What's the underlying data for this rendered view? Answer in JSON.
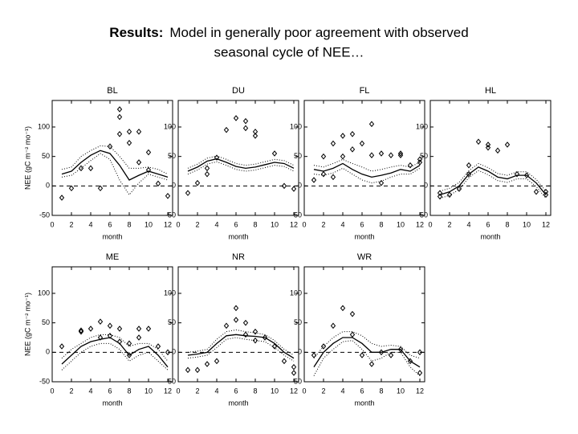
{
  "slide": {
    "title_bold": "Results:",
    "title_lines": [
      "Model in generally poor agreement with observed",
      "seasonal cycle of NEE…"
    ]
  },
  "chart_data": [
    {
      "type": "line",
      "title": "BL",
      "x_label": "month",
      "y_label": "NEE (gC m⁻² mo⁻¹)",
      "xlim": [
        0,
        12.5
      ],
      "ylim": [
        -50,
        145
      ],
      "xticks": [
        0,
        2,
        4,
        6,
        8,
        10,
        12
      ],
      "yticks": [
        -50,
        0,
        50,
        100
      ],
      "reference_line": 0,
      "x": [
        1,
        2,
        3,
        4,
        5,
        6,
        7,
        8,
        9,
        10,
        11,
        12
      ],
      "series": [
        {
          "style": "solid",
          "color": "#000000",
          "values": [
            20,
            25,
            40,
            52,
            60,
            55,
            35,
            10,
            18,
            25,
            20,
            15
          ]
        },
        {
          "style": "dotted",
          "color": "#000000",
          "values": [
            28,
            32,
            50,
            60,
            68,
            67,
            50,
            30,
            30,
            32,
            28,
            20
          ]
        },
        {
          "style": "dotted",
          "color": "#000000",
          "values": [
            15,
            18,
            30,
            43,
            55,
            45,
            10,
            -15,
            5,
            20,
            15,
            10
          ]
        }
      ],
      "points": {
        "x": [
          1,
          2,
          3,
          4,
          5,
          6,
          7,
          7,
          7,
          8,
          8,
          9,
          9,
          10,
          10,
          11,
          12
        ],
        "y": [
          -20,
          -4,
          30,
          30,
          -4,
          67,
          130,
          117,
          88,
          92,
          73,
          92,
          40,
          57,
          27,
          4,
          -17
        ]
      }
    },
    {
      "type": "line",
      "title": "DU",
      "x_label": "month",
      "xlim": [
        0,
        12.5
      ],
      "ylim": [
        -50,
        145
      ],
      "xticks": [
        0,
        2,
        4,
        6,
        8,
        10,
        12
      ],
      "yticks": [
        -50,
        0,
        50,
        100
      ],
      "reference_line": 0,
      "x": [
        1,
        2,
        3,
        4,
        5,
        6,
        7,
        8,
        9,
        10,
        11,
        12
      ],
      "series": [
        {
          "style": "solid",
          "color": "#000000",
          "values": [
            25,
            32,
            42,
            46,
            40,
            33,
            30,
            32,
            36,
            40,
            38,
            30
          ]
        },
        {
          "style": "dotted",
          "color": "#000000",
          "values": [
            30,
            37,
            47,
            51,
            45,
            38,
            35,
            37,
            41,
            45,
            43,
            35
          ]
        },
        {
          "style": "dotted",
          "color": "#000000",
          "values": [
            20,
            27,
            37,
            41,
            35,
            28,
            25,
            27,
            31,
            35,
            33,
            25
          ]
        }
      ],
      "points": {
        "x": [
          1,
          2,
          3,
          3,
          4,
          5,
          6,
          7,
          7,
          8,
          8,
          10,
          11,
          12
        ],
        "y": [
          -12,
          5,
          20,
          30,
          48,
          95,
          115,
          110,
          98,
          92,
          85,
          55,
          0,
          -5
        ]
      }
    },
    {
      "type": "line",
      "title": "FL",
      "x_label": "month",
      "xlim": [
        0,
        12.5
      ],
      "ylim": [
        -50,
        145
      ],
      "xticks": [
        0,
        2,
        4,
        6,
        8,
        10,
        12
      ],
      "yticks": [
        -50,
        0,
        50,
        100
      ],
      "reference_line": 0,
      "x": [
        1,
        2,
        3,
        4,
        5,
        6,
        7,
        8,
        9,
        10,
        11,
        12
      ],
      "series": [
        {
          "style": "solid",
          "color": "#000000",
          "values": [
            28,
            25,
            30,
            38,
            28,
            20,
            15,
            18,
            22,
            28,
            25,
            35
          ]
        },
        {
          "style": "dotted",
          "color": "#000000",
          "values": [
            35,
            32,
            38,
            45,
            38,
            32,
            25,
            28,
            32,
            35,
            32,
            40
          ]
        },
        {
          "style": "dotted",
          "color": "#000000",
          "values": [
            20,
            18,
            22,
            30,
            20,
            10,
            5,
            8,
            15,
            20,
            20,
            30
          ]
        }
      ],
      "points": {
        "x": [
          1,
          2,
          2,
          3,
          3,
          4,
          4,
          5,
          5,
          6,
          7,
          7,
          8,
          8,
          9,
          10,
          10,
          11,
          12,
          12
        ],
        "y": [
          10,
          50,
          20,
          72,
          15,
          85,
          50,
          88,
          62,
          72,
          105,
          52,
          55,
          5,
          52,
          55,
          52,
          35,
          45,
          40
        ]
      }
    },
    {
      "type": "line",
      "title": "HL",
      "x_label": "month",
      "xlim": [
        0,
        12.5
      ],
      "ylim": [
        -50,
        145
      ],
      "xticks": [
        0,
        2,
        4,
        6,
        8,
        10,
        12
      ],
      "yticks": [
        -50,
        0,
        50,
        100
      ],
      "reference_line": 0,
      "x": [
        1,
        2,
        3,
        4,
        5,
        6,
        7,
        8,
        9,
        10,
        11,
        12
      ],
      "series": [
        {
          "style": "solid",
          "color": "#000000",
          "values": [
            -15,
            -10,
            0,
            20,
            32,
            25,
            15,
            12,
            18,
            18,
            5,
            -15
          ]
        },
        {
          "style": "dotted",
          "color": "#000000",
          "values": [
            -9,
            -4,
            6,
            26,
            38,
            31,
            21,
            18,
            24,
            24,
            11,
            -9
          ]
        },
        {
          "style": "dotted",
          "color": "#000000",
          "values": [
            -21,
            -16,
            -6,
            14,
            26,
            19,
            9,
            6,
            12,
            12,
            -1,
            -21
          ]
        }
      ],
      "points": {
        "x": [
          1,
          1,
          2,
          3,
          4,
          4,
          5,
          6,
          6,
          7,
          8,
          9,
          10,
          11,
          12,
          12
        ],
        "y": [
          -12,
          -18,
          -15,
          -5,
          20,
          35,
          75,
          65,
          70,
          60,
          70,
          20,
          18,
          -10,
          -10,
          -15
        ]
      }
    },
    {
      "type": "line",
      "title": "ME",
      "x_label": "month",
      "y_label": "NEE (gC m⁻² mo⁻¹)",
      "xlim": [
        0,
        12.5
      ],
      "ylim": [
        -50,
        145
      ],
      "xticks": [
        0,
        2,
        4,
        6,
        8,
        10,
        12
      ],
      "yticks": [
        -50,
        0,
        50,
        100
      ],
      "reference_line": 0,
      "x": [
        1,
        2,
        3,
        4,
        5,
        6,
        7,
        8,
        9,
        10,
        11,
        12
      ],
      "series": [
        {
          "style": "solid",
          "color": "#000000",
          "values": [
            -20,
            -5,
            10,
            18,
            22,
            25,
            15,
            -5,
            5,
            10,
            -5,
            -25
          ]
        },
        {
          "style": "dotted",
          "color": "#000000",
          "values": [
            -10,
            5,
            15,
            25,
            30,
            30,
            25,
            10,
            15,
            15,
            5,
            -15
          ]
        },
        {
          "style": "dotted",
          "color": "#000000",
          "values": [
            -30,
            -15,
            0,
            10,
            15,
            15,
            5,
            -15,
            -5,
            0,
            -15,
            -30
          ]
        }
      ],
      "points": {
        "x": [
          1,
          3,
          3,
          4,
          5,
          5,
          6,
          6,
          7,
          7,
          8,
          8,
          9,
          9,
          10,
          11,
          12
        ],
        "y": [
          10,
          35,
          37,
          40,
          52,
          25,
          45,
          28,
          18,
          40,
          -5,
          15,
          40,
          25,
          40,
          10,
          0
        ]
      }
    },
    {
      "type": "line",
      "title": "NR",
      "x_label": "month",
      "xlim": [
        0,
        12.5
      ],
      "ylim": [
        -50,
        145
      ],
      "xticks": [
        0,
        2,
        4,
        6,
        8,
        10,
        12
      ],
      "yticks": [
        -50,
        0,
        50,
        100
      ],
      "reference_line": 0,
      "x": [
        1,
        2,
        3,
        4,
        5,
        6,
        7,
        8,
        9,
        10,
        11,
        12
      ],
      "series": [
        {
          "style": "solid",
          "color": "#000000",
          "values": [
            -5,
            -3,
            0,
            15,
            28,
            30,
            28,
            27,
            25,
            15,
            0,
            -10
          ]
        },
        {
          "style": "dotted",
          "color": "#000000",
          "values": [
            0,
            2,
            5,
            22,
            35,
            38,
            35,
            33,
            30,
            20,
            5,
            -5
          ]
        },
        {
          "style": "dotted",
          "color": "#000000",
          "values": [
            -10,
            -8,
            -5,
            8,
            22,
            25,
            22,
            20,
            18,
            8,
            -5,
            -15
          ]
        }
      ],
      "points": {
        "x": [
          1,
          2,
          3,
          4,
          5,
          6,
          6,
          7,
          7,
          8,
          8,
          9,
          10,
          11,
          12,
          12
        ],
        "y": [
          -30,
          -30,
          -20,
          -15,
          45,
          75,
          55,
          50,
          30,
          20,
          35,
          25,
          10,
          -15,
          -25,
          -35
        ]
      }
    },
    {
      "type": "line",
      "title": "WR",
      "x_label": "month",
      "xlim": [
        0,
        12.5
      ],
      "ylim": [
        -50,
        145
      ],
      "xticks": [
        0,
        2,
        4,
        6,
        8,
        10,
        12
      ],
      "yticks": [
        -50,
        0,
        50,
        100
      ],
      "reference_line": 0,
      "x": [
        1,
        2,
        3,
        4,
        5,
        6,
        7,
        8,
        9,
        10,
        11,
        12
      ],
      "series": [
        {
          "style": "solid",
          "color": "#000000",
          "values": [
            -25,
            0,
            15,
            25,
            25,
            15,
            0,
            0,
            5,
            5,
            -15,
            -25
          ]
        },
        {
          "style": "dotted",
          "color": "#000000",
          "values": [
            -10,
            10,
            25,
            35,
            35,
            28,
            15,
            10,
            12,
            10,
            -5,
            -10
          ]
        },
        {
          "style": "dotted",
          "color": "#000000",
          "values": [
            -40,
            -10,
            5,
            18,
            20,
            5,
            -15,
            -10,
            0,
            0,
            -25,
            -40
          ]
        }
      ],
      "points": {
        "x": [
          1,
          2,
          3,
          4,
          5,
          5,
          6,
          7,
          8,
          9,
          10,
          11,
          12,
          12
        ],
        "y": [
          -5,
          10,
          45,
          75,
          65,
          30,
          -5,
          -20,
          0,
          -5,
          5,
          -15,
          0,
          -35
        ]
      }
    }
  ]
}
